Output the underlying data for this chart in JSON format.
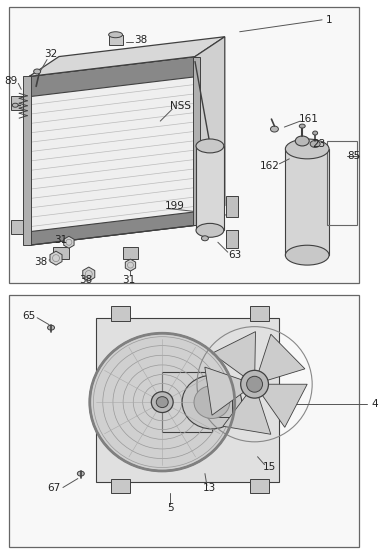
{
  "bg_color": "#ffffff",
  "line_color": "#404040",
  "light_gray": "#e8e8e8",
  "mid_gray": "#c8c8c8",
  "dark_gray": "#a0a0a0",
  "fin_color": "#d0d0d0",
  "panel_bg": "#f8f8f8"
}
